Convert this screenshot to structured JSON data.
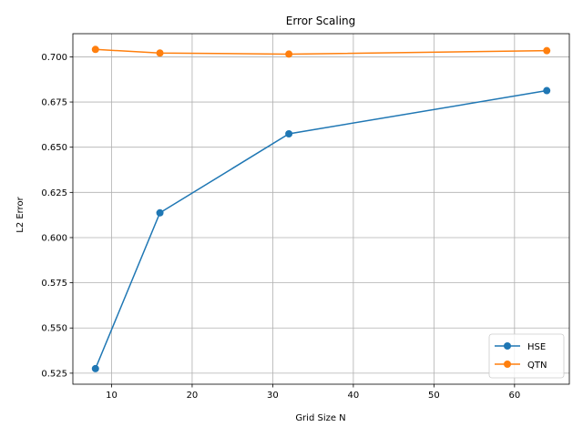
{
  "chart_data": {
    "type": "line",
    "title": "Error Scaling",
    "xlabel": "Grid Size N",
    "ylabel": "L2 Error",
    "xlim": [
      5.2,
      66.8
    ],
    "ylim": [
      0.5189,
      0.7128
    ],
    "xticks": [
      10,
      20,
      30,
      40,
      50,
      60
    ],
    "yticks": [
      0.525,
      0.55,
      0.575,
      0.6,
      0.625,
      0.65,
      0.675,
      0.7
    ],
    "ytick_labels": [
      "0.525",
      "0.550",
      "0.575",
      "0.600",
      "0.625",
      "0.650",
      "0.675",
      "0.700"
    ],
    "grid": true,
    "legend_position": "lower right",
    "series": [
      {
        "name": "HSE",
        "color": "#1f77b4",
        "marker": "circle",
        "x": [
          8,
          16,
          32,
          64
        ],
        "y": [
          0.5275,
          0.6137,
          0.6574,
          0.6813
        ]
      },
      {
        "name": "QTN",
        "color": "#ff7f0e",
        "marker": "circle",
        "x": [
          8,
          16,
          32,
          64
        ],
        "y": [
          0.7041,
          0.7021,
          0.7015,
          0.7034
        ]
      }
    ]
  }
}
